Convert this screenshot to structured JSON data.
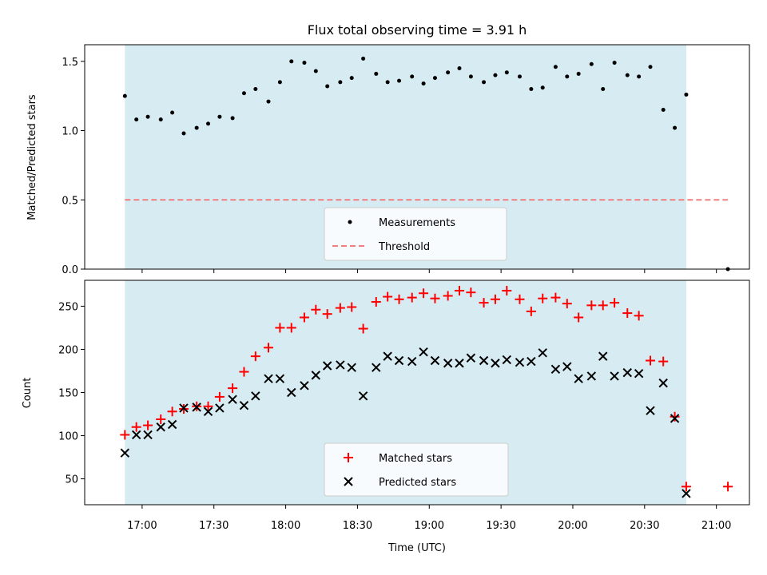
{
  "chart_data": {
    "type": "scatter",
    "title": "Flux total observing time = 3.91 h",
    "xlabel": "Time (UTC)",
    "x_ticks": [
      "17:00",
      "17:30",
      "18:00",
      "18:30",
      "19:00",
      "19:30",
      "20:00",
      "20:30",
      "21:00"
    ],
    "x_tick_hours": [
      17.0,
      17.5,
      18.0,
      18.5,
      19.0,
      19.5,
      20.0,
      20.5,
      21.0
    ],
    "xlim_hours": [
      16.6,
      21.23
    ],
    "observing_window_hours": [
      16.88,
      20.79
    ],
    "colors": {
      "shade": "#add8e6",
      "measure": "#000000",
      "threshold": "#f08080",
      "matched": "#ff0000",
      "predicted": "#000000"
    },
    "panels": [
      {
        "id": "ratio",
        "ylabel": "Matched/Predicted stars",
        "ylim": [
          0,
          1.62
        ],
        "yticks": [
          0.0,
          0.5,
          1.0,
          1.5
        ],
        "ytick_labels": [
          "0.0",
          "0.5",
          "1.0",
          "1.5"
        ],
        "threshold": 0.5,
        "threshold_x_hours": [
          16.88,
          21.08
        ],
        "legend": [
          "Measurements",
          "Threshold"
        ],
        "series": [
          {
            "name": "Measurements",
            "x": [
              16.88,
              16.96,
              17.04,
              17.13,
              17.21,
              17.29,
              17.38,
              17.46,
              17.54,
              17.63,
              17.71,
              17.79,
              17.88,
              17.96,
              18.04,
              18.13,
              18.21,
              18.29,
              18.38,
              18.46,
              18.54,
              18.63,
              18.71,
              18.79,
              18.88,
              18.96,
              19.04,
              19.13,
              19.21,
              19.29,
              19.38,
              19.46,
              19.54,
              19.63,
              19.71,
              19.79,
              19.88,
              19.96,
              20.04,
              20.13,
              20.21,
              20.29,
              20.38,
              20.46,
              20.54,
              20.63,
              20.71,
              20.79,
              21.08
            ],
            "y": [
              1.25,
              1.08,
              1.1,
              1.08,
              1.13,
              0.98,
              1.02,
              1.05,
              1.1,
              1.09,
              1.27,
              1.3,
              1.21,
              1.35,
              1.5,
              1.49,
              1.43,
              1.32,
              1.35,
              1.38,
              1.52,
              1.41,
              1.35,
              1.36,
              1.39,
              1.34,
              1.38,
              1.42,
              1.45,
              1.39,
              1.35,
              1.4,
              1.42,
              1.39,
              1.3,
              1.31,
              1.46,
              1.39,
              1.41,
              1.48,
              1.3,
              1.49,
              1.4,
              1.39,
              1.46,
              1.15,
              1.02,
              1.26,
              0.0
            ]
          }
        ]
      },
      {
        "id": "count",
        "ylabel": "Count",
        "ylim": [
          20,
          280
        ],
        "yticks": [
          50,
          100,
          150,
          200,
          250
        ],
        "ytick_labels": [
          "50",
          "100",
          "150",
          "200",
          "250"
        ],
        "legend": [
          "Matched stars",
          "Predicted stars"
        ],
        "series": [
          {
            "name": "Matched stars",
            "x": [
              16.88,
              16.96,
              17.04,
              17.13,
              17.21,
              17.29,
              17.38,
              17.46,
              17.54,
              17.63,
              17.71,
              17.79,
              17.88,
              17.96,
              18.04,
              18.13,
              18.21,
              18.29,
              18.38,
              18.46,
              18.54,
              18.63,
              18.71,
              18.79,
              18.88,
              18.96,
              19.04,
              19.13,
              19.21,
              19.29,
              19.38,
              19.46,
              19.54,
              19.63,
              19.71,
              19.79,
              19.88,
              19.96,
              20.04,
              20.13,
              20.21,
              20.29,
              20.38,
              20.46,
              20.54,
              20.63,
              20.71,
              20.79,
              21.08
            ],
            "y": [
              101,
              110,
              112,
              119,
              128,
              131,
              134,
              134,
              145,
              155,
              174,
              192,
              202,
              225,
              225,
              237,
              246,
              241,
              248,
              249,
              224,
              255,
              261,
              258,
              260,
              265,
              259,
              262,
              268,
              266,
              254,
              258,
              268,
              258,
              244,
              259,
              260,
              253,
              237,
              251,
              251,
              254,
              242,
              239,
              187,
              186,
              122,
              41,
              41
            ]
          },
          {
            "name": "Predicted stars",
            "x": [
              16.88,
              16.96,
              17.04,
              17.13,
              17.21,
              17.29,
              17.38,
              17.46,
              17.54,
              17.63,
              17.71,
              17.79,
              17.88,
              17.96,
              18.04,
              18.13,
              18.21,
              18.29,
              18.38,
              18.46,
              18.54,
              18.63,
              18.71,
              18.79,
              18.88,
              18.96,
              19.04,
              19.13,
              19.21,
              19.29,
              19.38,
              19.46,
              19.54,
              19.63,
              19.71,
              19.79,
              19.88,
              19.96,
              20.04,
              20.13,
              20.21,
              20.29,
              20.38,
              20.46,
              20.54,
              20.63,
              20.71,
              20.79
            ],
            "y": [
              80,
              101,
              101,
              110,
              113,
              132,
              133,
              128,
              132,
              142,
              135,
              146,
              166,
              166,
              150,
              158,
              170,
              181,
              182,
              179,
              146,
              179,
              192,
              187,
              186,
              197,
              187,
              184,
              184,
              190,
              187,
              184,
              188,
              185,
              186,
              196,
              177,
              180,
              166,
              169,
              192,
              169,
              173,
              172,
              129,
              161,
              120,
              33
            ]
          }
        ]
      }
    ]
  }
}
